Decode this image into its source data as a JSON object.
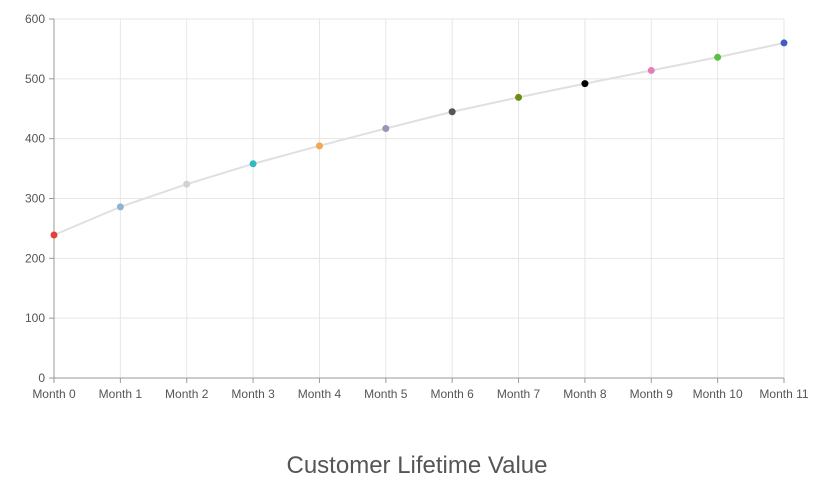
{
  "chart_data": {
    "type": "line",
    "title": "Customer Lifetime Value",
    "categories": [
      "Month 0",
      "Month 1",
      "Month 2",
      "Month 3",
      "Month 4",
      "Month 5",
      "Month 6",
      "Month 7",
      "Month 8",
      "Month 9",
      "Month 10",
      "Month 11"
    ],
    "series": [
      {
        "values": [
          239,
          286,
          324,
          358,
          388,
          417,
          445,
          469,
          492,
          514,
          536,
          560
        ],
        "line_color": "#e0e0e0",
        "point_colors": [
          "#e3403a",
          "#8fb3d1",
          "#d3d3d3",
          "#33b9c0",
          "#f0a852",
          "#9a94b8",
          "#555555",
          "#6b8e11",
          "#000000",
          "#e57dba",
          "#5cbf43",
          "#3f5fbf"
        ]
      }
    ],
    "ylim": [
      0,
      600
    ],
    "y_ticks": [
      0,
      100,
      200,
      300,
      400,
      500,
      600
    ],
    "grid": true,
    "legend": "none"
  }
}
